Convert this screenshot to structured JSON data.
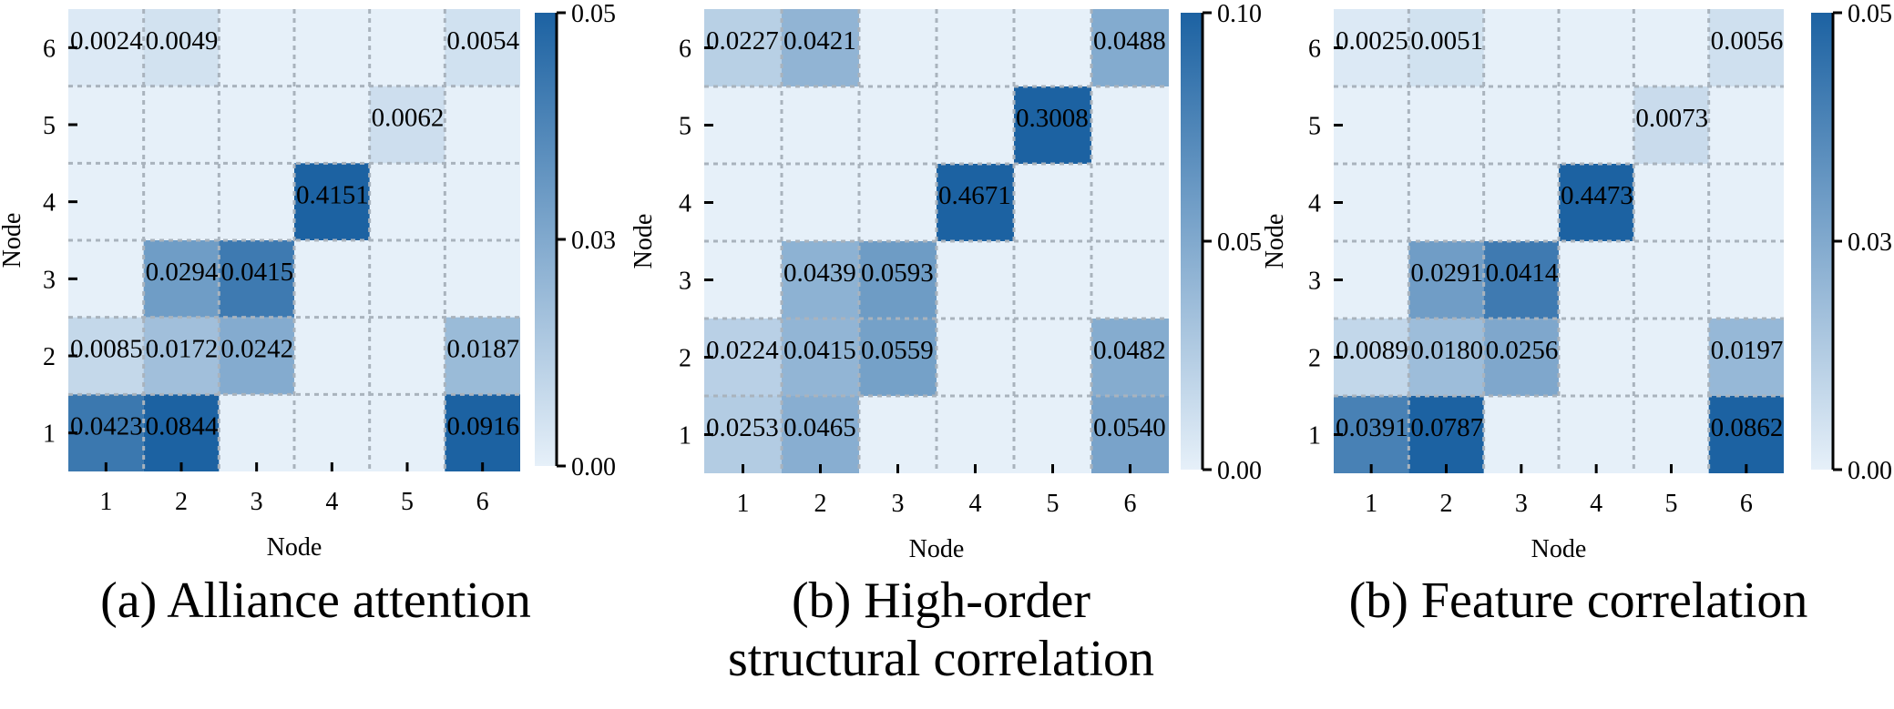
{
  "chart_data": [
    {
      "type": "heatmap",
      "caption": "(a) Alliance attention",
      "xlabel": "Node",
      "ylabel": "Node",
      "x_ticks": [
        "1",
        "2",
        "3",
        "4",
        "5",
        "6"
      ],
      "y_ticks": [
        "1",
        "2",
        "3",
        "4",
        "5",
        "6"
      ],
      "colorbar": {
        "vmin": 0,
        "vmax": 0.05,
        "ticks": [
          "0.00",
          "0.03",
          "0.05"
        ]
      },
      "cells": [
        {
          "x": 1,
          "y": 6,
          "value": 0.0024,
          "label": "0.0024"
        },
        {
          "x": 2,
          "y": 6,
          "value": 0.0049,
          "label": "0.0049"
        },
        {
          "x": 6,
          "y": 6,
          "value": 0.0054,
          "label": "0.0054"
        },
        {
          "x": 5,
          "y": 5,
          "value": 0.0062,
          "label": "0.0062"
        },
        {
          "x": 4,
          "y": 4,
          "value": 0.4151,
          "label": "0.4151"
        },
        {
          "x": 2,
          "y": 3,
          "value": 0.0294,
          "label": "0.0294"
        },
        {
          "x": 3,
          "y": 3,
          "value": 0.0415,
          "label": "0.0415"
        },
        {
          "x": 1,
          "y": 2,
          "value": 0.0085,
          "label": "0.0085"
        },
        {
          "x": 2,
          "y": 2,
          "value": 0.0172,
          "label": "0.0172"
        },
        {
          "x": 3,
          "y": 2,
          "value": 0.0242,
          "label": "0.0242"
        },
        {
          "x": 6,
          "y": 2,
          "value": 0.0187,
          "label": "0.0187"
        },
        {
          "x": 1,
          "y": 1,
          "value": 0.0423,
          "label": "0.0423"
        },
        {
          "x": 2,
          "y": 1,
          "value": 0.0844,
          "label": "0.0844"
        },
        {
          "x": 6,
          "y": 1,
          "value": 0.0916,
          "label": "0.0916"
        }
      ]
    },
    {
      "type": "heatmap",
      "caption": "(b) High-order structural correlation",
      "xlabel": "Node",
      "ylabel": "Node",
      "x_ticks": [
        "1",
        "2",
        "3",
        "4",
        "5",
        "6"
      ],
      "y_ticks": [
        "1",
        "2",
        "3",
        "4",
        "5",
        "6"
      ],
      "colorbar": {
        "vmin": 0,
        "vmax": 0.1,
        "ticks": [
          "0.00",
          "0.05",
          "0.10"
        ]
      },
      "cells": [
        {
          "x": 1,
          "y": 6,
          "value": 0.0227,
          "label": "0.0227"
        },
        {
          "x": 2,
          "y": 6,
          "value": 0.0421,
          "label": "0.0421"
        },
        {
          "x": 6,
          "y": 6,
          "value": 0.0488,
          "label": "0.0488"
        },
        {
          "x": 5,
          "y": 5,
          "value": 0.3008,
          "label": "0.3008"
        },
        {
          "x": 4,
          "y": 4,
          "value": 0.4671,
          "label": "0.4671"
        },
        {
          "x": 2,
          "y": 3,
          "value": 0.0439,
          "label": "0.0439"
        },
        {
          "x": 3,
          "y": 3,
          "value": 0.0593,
          "label": "0.0593"
        },
        {
          "x": 1,
          "y": 2,
          "value": 0.0224,
          "label": "0.0224"
        },
        {
          "x": 2,
          "y": 2,
          "value": 0.0415,
          "label": "0.0415"
        },
        {
          "x": 3,
          "y": 2,
          "value": 0.0559,
          "label": "0.0559"
        },
        {
          "x": 6,
          "y": 2,
          "value": 0.0482,
          "label": "0.0482"
        },
        {
          "x": 1,
          "y": 1,
          "value": 0.0253,
          "label": "0.0253"
        },
        {
          "x": 2,
          "y": 1,
          "value": 0.0465,
          "label": "0.0465"
        },
        {
          "x": 6,
          "y": 1,
          "value": 0.054,
          "label": "0.0540"
        }
      ]
    },
    {
      "type": "heatmap",
      "caption": "(b) Feature correlation",
      "xlabel": "Node",
      "ylabel": "Node",
      "x_ticks": [
        "1",
        "2",
        "3",
        "4",
        "5",
        "6"
      ],
      "y_ticks": [
        "1",
        "2",
        "3",
        "4",
        "5",
        "6"
      ],
      "colorbar": {
        "vmin": 0,
        "vmax": 0.05,
        "ticks": [
          "0.00",
          "0.03",
          "0.05"
        ]
      },
      "cells": [
        {
          "x": 1,
          "y": 6,
          "value": 0.0025,
          "label": "0.0025"
        },
        {
          "x": 2,
          "y": 6,
          "value": 0.0051,
          "label": "0.0051"
        },
        {
          "x": 6,
          "y": 6,
          "value": 0.0056,
          "label": "0.0056"
        },
        {
          "x": 5,
          "y": 5,
          "value": 0.0073,
          "label": "0.0073"
        },
        {
          "x": 4,
          "y": 4,
          "value": 0.4473,
          "label": "0.4473"
        },
        {
          "x": 2,
          "y": 3,
          "value": 0.0291,
          "label": "0.0291"
        },
        {
          "x": 3,
          "y": 3,
          "value": 0.0414,
          "label": "0.0414"
        },
        {
          "x": 1,
          "y": 2,
          "value": 0.0089,
          "label": "0.0089"
        },
        {
          "x": 2,
          "y": 2,
          "value": 0.018,
          "label": "0.0180"
        },
        {
          "x": 3,
          "y": 2,
          "value": 0.0256,
          "label": "0.0256"
        },
        {
          "x": 6,
          "y": 2,
          "value": 0.0197,
          "label": "0.0197"
        },
        {
          "x": 1,
          "y": 1,
          "value": 0.0391,
          "label": "0.0391"
        },
        {
          "x": 2,
          "y": 1,
          "value": 0.0787,
          "label": "0.0787"
        },
        {
          "x": 6,
          "y": 1,
          "value": 0.0862,
          "label": "0.0862"
        }
      ]
    }
  ]
}
